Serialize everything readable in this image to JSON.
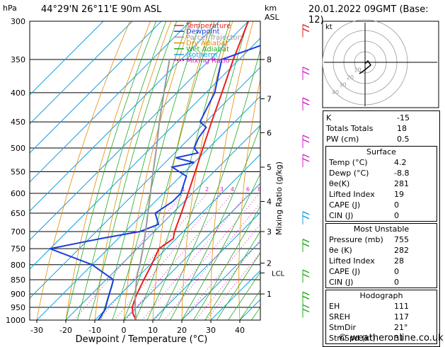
{
  "header": {
    "location": "44°29'N  26°11'E  90m  ASL",
    "date": "20.01.2022  09GMT  (Base: 12)",
    "hpa_label": "hPa",
    "km_label": "km",
    "asl_label": "ASL"
  },
  "legend": {
    "items": [
      {
        "label": "Temperature",
        "color": "#ee1c1c",
        "dash": ""
      },
      {
        "label": "Dewpoint",
        "color": "#1c3ce0",
        "dash": ""
      },
      {
        "label": "Parcel Trajectory",
        "color": "#999999",
        "dash": ""
      },
      {
        "label": "Dry Adiabat",
        "color": "#e88a00",
        "dash": ""
      },
      {
        "label": "Wet Adiabat",
        "color": "#22aa22",
        "dash": ""
      },
      {
        "label": "Isotherm",
        "color": "#1aa0e0",
        "dash": ""
      },
      {
        "label": "Mixing Ratio",
        "color": "#d01ec8",
        "dash": "2,2"
      }
    ]
  },
  "chart_data": {
    "type": "line",
    "title": "",
    "xlabel": "Dewpoint / Temperature (°C)",
    "ylabel": "hPa",
    "secondary_ylabel": "Mixing Ratio (g/kg)",
    "x_ticks": [
      -30,
      -20,
      -10,
      0,
      10,
      20,
      30,
      40
    ],
    "pressure_levels": [
      300,
      350,
      400,
      450,
      500,
      550,
      600,
      650,
      700,
      750,
      800,
      850,
      900,
      950,
      1000
    ],
    "km_ticks": [
      {
        "km": "8",
        "p": 350
      },
      {
        "km": "7",
        "p": 410
      },
      {
        "km": "6",
        "p": 470
      },
      {
        "km": "5",
        "p": 540
      },
      {
        "km": "4",
        "p": 620
      },
      {
        "km": "3",
        "p": 700
      },
      {
        "km": "2",
        "p": 795
      },
      {
        "km": "1",
        "p": 900
      }
    ],
    "lcl": {
      "label": "LCL",
      "p": 827
    },
    "mixing_ratio_labels": [
      "1",
      "2",
      "3",
      "4",
      "6",
      "8",
      "10",
      "15",
      "20",
      "25"
    ],
    "series": [
      {
        "name": "Temperature",
        "color": "#ee1c1c",
        "p": [
          1000,
          975,
          950,
          925,
          900,
          850,
          800,
          750,
          720,
          700,
          650,
          600,
          550,
          500,
          450,
          400,
          350,
          300
        ],
        "t": [
          4.2,
          1.0,
          -1.5,
          -3.0,
          -4.5,
          -7.0,
          -9.5,
          -12.5,
          -11.0,
          -13.0,
          -17.0,
          -21.5,
          -26.5,
          -32.0,
          -38.0,
          -44.5,
          -52.0,
          -60.0
        ]
      },
      {
        "name": "Dewpoint",
        "color": "#1c3ce0",
        "p": [
          1000,
          960,
          930,
          900,
          870,
          850,
          800,
          750,
          720,
          700,
          680,
          650,
          620,
          600,
          560,
          540,
          530,
          520,
          510,
          500,
          480,
          460,
          450,
          400,
          350,
          330,
          300
        ],
        "t": [
          -8.8,
          -10.0,
          -12.0,
          -14.0,
          -16.0,
          -17.5,
          -30.0,
          -50.0,
          -36.0,
          -25.0,
          -21.0,
          -26.0,
          -24.0,
          -24.0,
          -28.0,
          -36.0,
          -30.0,
          -38.0,
          -32.0,
          -35.0,
          -37.0,
          -38.0,
          -42.0,
          -47.0,
          -56.0,
          -47.0,
          -52.0
        ]
      },
      {
        "name": "Parcel Trajectory",
        "color": "#999999",
        "p": [
          1000,
          950,
          900,
          850,
          827,
          800,
          750,
          700,
          650,
          600,
          550,
          500,
          450,
          400,
          350
        ],
        "t": [
          4.2,
          -0.5,
          -5.0,
          -9.5,
          -11.5,
          -13.5,
          -18.0,
          -23.0,
          -28.5,
          -34.5,
          -41.0,
          -48.0,
          -56.0,
          -64.5,
          -74.0
        ]
      }
    ]
  },
  "hodograph": {
    "label": "kt",
    "speed_labels": [
      "10",
      "20",
      "30",
      "40"
    ]
  },
  "indices": {
    "basic": [
      {
        "label": "K",
        "value": "-15"
      },
      {
        "label": "Totals Totals",
        "value": "18"
      },
      {
        "label": "PW (cm)",
        "value": "0.5"
      }
    ],
    "surface": {
      "title": "Surface",
      "rows": [
        {
          "label": "Temp (°C)",
          "value": "4.2"
        },
        {
          "label": "Dewp (°C)",
          "value": "-8.8"
        },
        {
          "label": "θe(K)",
          "value": "281"
        },
        {
          "label": "Lifted Index",
          "value": "19"
        },
        {
          "label": "CAPE (J)",
          "value": "0"
        },
        {
          "label": "CIN (J)",
          "value": "0"
        }
      ]
    },
    "most_unstable": {
      "title": "Most Unstable",
      "rows": [
        {
          "label": "Pressure (mb)",
          "value": "755"
        },
        {
          "label": "θe (K)",
          "value": "282"
        },
        {
          "label": "Lifted Index",
          "value": "28"
        },
        {
          "label": "CAPE (J)",
          "value": "0"
        },
        {
          "label": "CIN (J)",
          "value": "0"
        }
      ]
    },
    "hodograph_stats": {
      "title": "Hodograph",
      "rows": [
        {
          "label": "EH",
          "value": "111"
        },
        {
          "label": "SREH",
          "value": "117"
        },
        {
          "label": "StmDir",
          "value": "21°"
        },
        {
          "label": "StmSpd (kt)",
          "value": "31"
        }
      ]
    }
  },
  "footer": {
    "copyright": "© weatheronline.co.uk"
  }
}
